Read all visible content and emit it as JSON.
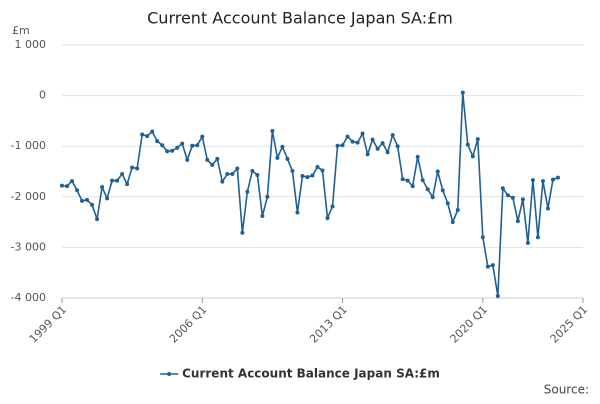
{
  "chart_data": {
    "type": "line",
    "title": "Current Account Balance Japan SA:£m",
    "y_label": "£m",
    "source": "Source:",
    "ylim": [
      -4000,
      1000
    ],
    "yticks": [
      {
        "value": -4000,
        "label": "-4 000"
      },
      {
        "value": -3000,
        "label": "-3 000"
      },
      {
        "value": -2000,
        "label": "-2 000"
      },
      {
        "value": -1000,
        "label": "-1 000"
      },
      0,
      {
        "value": 1000,
        "label": "1 000"
      }
    ],
    "xlim": [
      1999,
      2025
    ],
    "xticks": [
      {
        "value": 1999,
        "label": "1999 Q1"
      },
      {
        "value": 2006,
        "label": "2006 Q1"
      },
      {
        "value": 2013,
        "label": "2013 Q1"
      },
      {
        "value": 2020,
        "label": "2020 Q1"
      },
      {
        "value": 2025,
        "label": "2025 Q1"
      }
    ],
    "grid": true,
    "legend": "bottom",
    "x": [
      1999,
      1999.25,
      1999.5,
      1999.75,
      2000,
      2000.25,
      2000.5,
      2000.75,
      2001,
      2001.25,
      2001.5,
      2001.75,
      2002,
      2002.25,
      2002.5,
      2002.75,
      2003,
      2003.25,
      2003.5,
      2003.75,
      2004,
      2004.25,
      2004.5,
      2004.75,
      2005,
      2005.25,
      2005.5,
      2005.75,
      2006,
      2006.25,
      2006.5,
      2006.75,
      2007,
      2007.25,
      2007.5,
      2007.75,
      2008,
      2008.25,
      2008.5,
      2008.75,
      2009,
      2009.25,
      2009.5,
      2009.75,
      2010,
      2010.25,
      2010.5,
      2010.75,
      2011,
      2011.25,
      2011.5,
      2011.75,
      2012,
      2012.25,
      2012.5,
      2012.75,
      2013,
      2013.25,
      2013.5,
      2013.75,
      2014,
      2014.25,
      2014.5,
      2014.75,
      2015,
      2015.25,
      2015.5,
      2015.75,
      2016,
      2016.25,
      2016.5,
      2016.75,
      2017,
      2017.25,
      2017.5,
      2017.75,
      2018,
      2018.25,
      2018.5,
      2018.75,
      2019,
      2019.25,
      2019.5,
      2019.75,
      2020,
      2020.25,
      2020.5,
      2020.75,
      2021,
      2021.25,
      2021.5,
      2021.75,
      2022,
      2022.25,
      2022.5,
      2022.75,
      2023,
      2023.25,
      2023.5,
      2023.75
    ],
    "series": [
      {
        "name": "Current Account Balance Japan SA:£m",
        "color": "#206095",
        "values": [
          -1780,
          -1790,
          -1690,
          -1870,
          -2080,
          -2060,
          -2160,
          -2440,
          -1810,
          -2030,
          -1680,
          -1680,
          -1550,
          -1750,
          -1420,
          -1440,
          -770,
          -800,
          -710,
          -900,
          -980,
          -1100,
          -1090,
          -1030,
          -950,
          -1270,
          -990,
          -980,
          -810,
          -1270,
          -1370,
          -1250,
          -1700,
          -1550,
          -1550,
          -1440,
          -2710,
          -1900,
          -1490,
          -1570,
          -2380,
          -2000,
          -700,
          -1230,
          -1010,
          -1250,
          -1490,
          -2310,
          -1590,
          -1610,
          -1580,
          -1410,
          -1480,
          -2420,
          -2190,
          -990,
          -980,
          -810,
          -910,
          -930,
          -750,
          -1160,
          -870,
          -1050,
          -940,
          -1120,
          -780,
          -1000,
          -1650,
          -1680,
          -1790,
          -1210,
          -1670,
          -1850,
          -2010,
          -1500,
          -1870,
          -2130,
          -2500,
          -2260,
          60,
          -970,
          -1200,
          -860,
          -2800,
          -3380,
          -3350,
          -3960,
          -1830,
          -1970,
          -2020,
          -2480,
          -2050,
          -2910,
          -1670,
          -2800,
          -1690,
          -2230,
          -1660,
          -1620
        ]
      }
    ]
  }
}
